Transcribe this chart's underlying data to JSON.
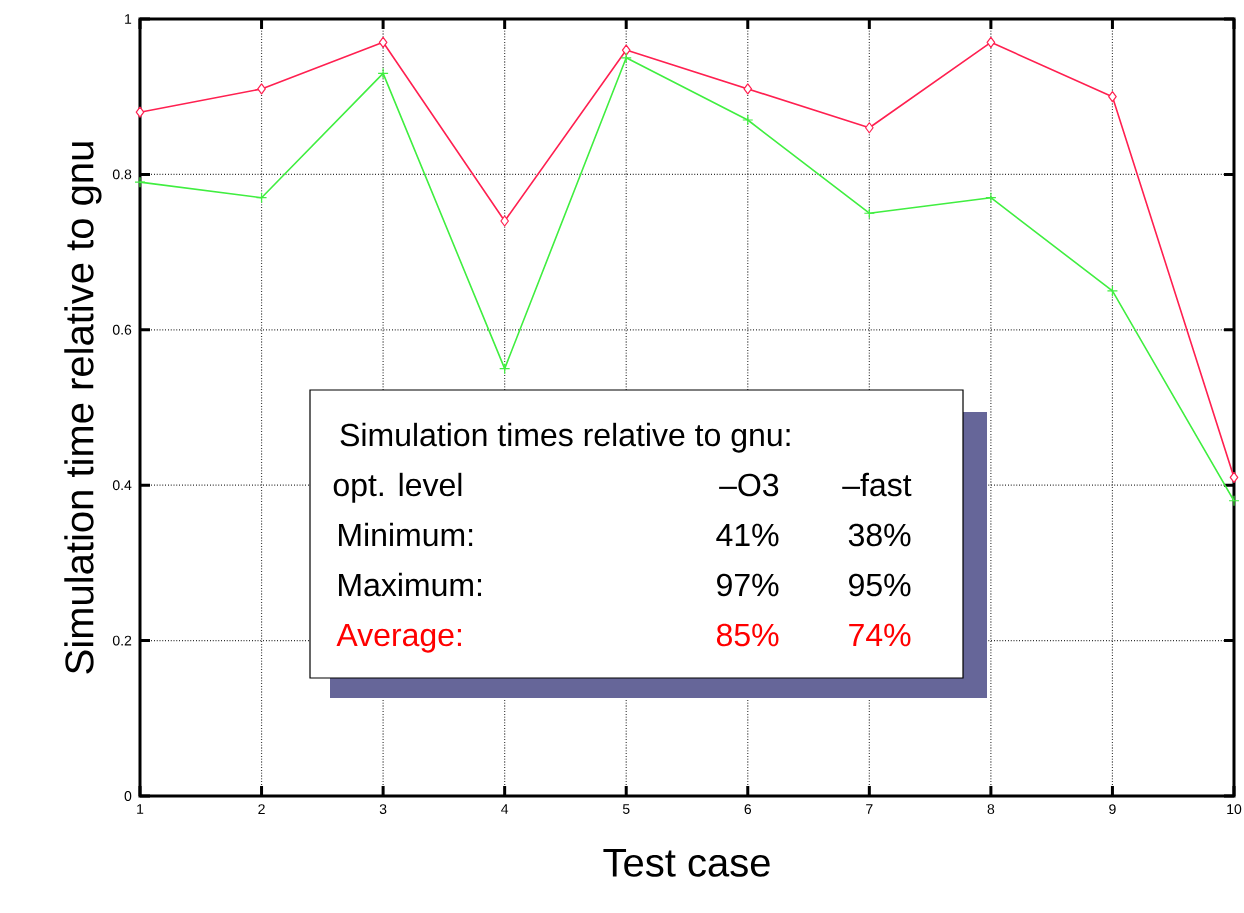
{
  "chart_data": {
    "type": "line",
    "xlabel": "Test case",
    "ylabel": "Simulation time relative to gnu",
    "x": [
      1,
      2,
      3,
      4,
      5,
      6,
      7,
      8,
      9,
      10
    ],
    "series": [
      {
        "color": "#ff2050",
        "marker": "diamond",
        "values": [
          0.88,
          0.91,
          0.97,
          0.74,
          0.96,
          0.91,
          0.86,
          0.97,
          0.9,
          0.41
        ]
      },
      {
        "color": "#40ee40",
        "marker": "cross",
        "values": [
          0.79,
          0.77,
          0.93,
          0.55,
          0.95,
          0.87,
          0.75,
          0.77,
          0.65,
          0.38
        ]
      }
    ],
    "xlim": [
      1,
      10
    ],
    "xticks": [
      1,
      2,
      3,
      4,
      5,
      6,
      7,
      8,
      9,
      10
    ],
    "ylim": [
      0,
      1
    ],
    "yticks": [
      0,
      0.2,
      0.4,
      0.6,
      0.8,
      1
    ],
    "grid": true,
    "line_style": "solid",
    "annotations": [
      "Simulation times relative to gnu:",
      "opt. level",
      "–O3",
      "–fast",
      "Minimum:",
      "41%",
      "38%",
      "Maximum:",
      "97%",
      "95%",
      "Average:",
      "85%",
      "74%"
    ]
  }
}
